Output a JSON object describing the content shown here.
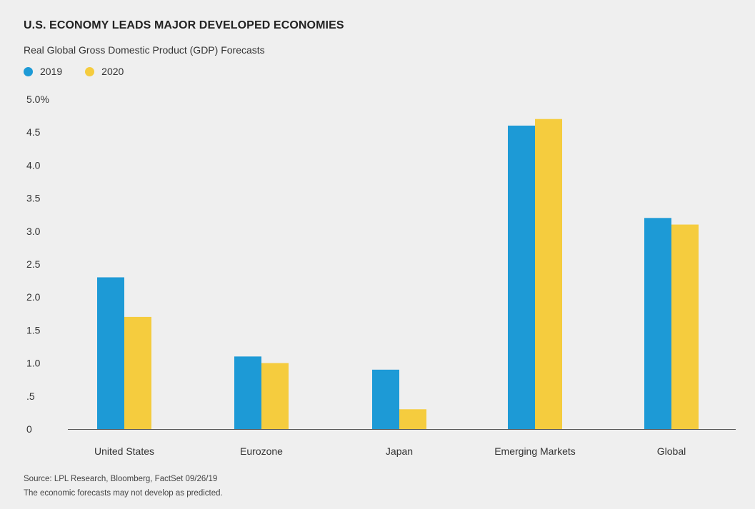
{
  "header": {
    "title": "U.S. ECONOMY LEADS MAJOR DEVELOPED ECONOMIES",
    "subtitle": "Real Global Gross Domestic Product (GDP) Forecasts"
  },
  "footer": {
    "source": "Source: LPL Research, Bloomberg, FactSet 09/26/19",
    "disclaimer": "The economic forecasts may not develop as predicted."
  },
  "colors": {
    "series_2019": "#1d9ad6",
    "series_2020": "#f5cc3e",
    "axis": "#555555"
  },
  "chart_data": {
    "type": "bar",
    "title": "U.S. ECONOMY LEADS MAJOR DEVELOPED ECONOMIES",
    "subtitle": "Real Global Gross Domestic Product (GDP) Forecasts",
    "categories": [
      "United States",
      "Eurozone",
      "Japan",
      "Emerging Markets",
      "Global"
    ],
    "series": [
      {
        "name": "2019",
        "values": [
          2.3,
          1.1,
          0.9,
          4.6,
          3.2
        ]
      },
      {
        "name": "2020",
        "values": [
          1.7,
          1.0,
          0.3,
          4.7,
          3.1
        ]
      }
    ],
    "ylim": [
      0,
      5
    ],
    "yticks": [
      {
        "value": 0,
        "label": "0"
      },
      {
        "value": 0.5,
        "label": ".5"
      },
      {
        "value": 1,
        "label": "1.0"
      },
      {
        "value": 1.5,
        "label": "1.5"
      },
      {
        "value": 2,
        "label": "2.0"
      },
      {
        "value": 2.5,
        "label": "2.5"
      },
      {
        "value": 3,
        "label": "3.0"
      },
      {
        "value": 3.5,
        "label": "3.5"
      },
      {
        "value": 4,
        "label": "4.0"
      },
      {
        "value": 4.5,
        "label": "4.5"
      },
      {
        "value": 5,
        "label": "5.0%"
      }
    ],
    "xlabel": "",
    "ylabel": "",
    "grid": false,
    "legend": "top-left"
  }
}
